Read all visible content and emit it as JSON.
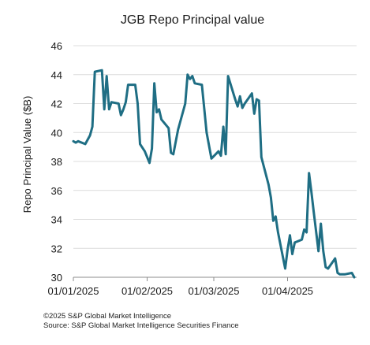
{
  "chart_data": {
    "type": "line",
    "title": "JGB Repo Principal value",
    "xlabel": "",
    "ylabel": "Repo Principal Value ($B)",
    "ylim": [
      30,
      46
    ],
    "yticks": [
      "30",
      "32",
      "34",
      "36",
      "38",
      "40",
      "42",
      "44",
      "46"
    ],
    "xlim": [
      "2025-01-01",
      "2025-04-30"
    ],
    "xticks": [
      {
        "date": "2025-01-01",
        "label": "01/01/2025"
      },
      {
        "date": "2025-02-01",
        "label": "01/02/2025"
      },
      {
        "date": "2025-03-01",
        "label": "01/03/2025"
      },
      {
        "date": "2025-04-01",
        "label": "01/04/2025"
      }
    ],
    "grid": "horizontal",
    "line_color": "#1f6e84",
    "series": [
      {
        "points": [
          [
            "2025-01-01",
            39.4
          ],
          [
            "2025-01-02",
            39.3
          ],
          [
            "2025-01-03",
            39.4
          ],
          [
            "2025-01-06",
            39.2
          ],
          [
            "2025-01-08",
            39.8
          ],
          [
            "2025-01-09",
            40.4
          ],
          [
            "2025-01-10",
            44.2
          ],
          [
            "2025-01-13",
            44.3
          ],
          [
            "2025-01-14",
            41.6
          ],
          [
            "2025-01-15",
            43.9
          ],
          [
            "2025-01-16",
            41.6
          ],
          [
            "2025-01-17",
            42.1
          ],
          [
            "2025-01-20",
            42.0
          ],
          [
            "2025-01-21",
            41.2
          ],
          [
            "2025-01-22",
            41.6
          ],
          [
            "2025-01-23",
            42.1
          ],
          [
            "2025-01-24",
            43.3
          ],
          [
            "2025-01-27",
            43.3
          ],
          [
            "2025-01-28",
            42.0
          ],
          [
            "2025-01-29",
            39.2
          ],
          [
            "2025-01-31",
            38.7
          ],
          [
            "2025-02-02",
            37.9
          ],
          [
            "2025-02-03",
            38.9
          ],
          [
            "2025-02-04",
            43.4
          ],
          [
            "2025-02-05",
            41.4
          ],
          [
            "2025-02-06",
            41.6
          ],
          [
            "2025-02-07",
            40.9
          ],
          [
            "2025-02-10",
            40.3
          ],
          [
            "2025-02-11",
            38.6
          ],
          [
            "2025-02-12",
            38.5
          ],
          [
            "2025-02-14",
            40.2
          ],
          [
            "2025-02-17",
            42.0
          ],
          [
            "2025-02-18",
            44.0
          ],
          [
            "2025-02-19",
            43.7
          ],
          [
            "2025-02-20",
            43.9
          ],
          [
            "2025-02-21",
            43.4
          ],
          [
            "2025-02-24",
            43.3
          ],
          [
            "2025-02-26",
            40.0
          ],
          [
            "2025-02-28",
            38.2
          ],
          [
            "2025-03-03",
            38.7
          ],
          [
            "2025-03-04",
            38.4
          ],
          [
            "2025-03-05",
            40.4
          ],
          [
            "2025-03-06",
            38.5
          ],
          [
            "2025-03-07",
            43.9
          ],
          [
            "2025-03-10",
            42.3
          ],
          [
            "2025-03-11",
            41.8
          ],
          [
            "2025-03-12",
            42.5
          ],
          [
            "2025-03-13",
            41.7
          ],
          [
            "2025-03-14",
            42.0
          ],
          [
            "2025-03-17",
            42.7
          ],
          [
            "2025-03-18",
            41.3
          ],
          [
            "2025-03-19",
            42.3
          ],
          [
            "2025-03-20",
            42.2
          ],
          [
            "2025-03-21",
            38.3
          ],
          [
            "2025-03-24",
            36.4
          ],
          [
            "2025-03-25",
            35.5
          ],
          [
            "2025-03-26",
            33.9
          ],
          [
            "2025-03-27",
            34.2
          ],
          [
            "2025-03-28",
            33.1
          ],
          [
            "2025-03-31",
            30.6
          ],
          [
            "2025-04-01",
            31.9
          ],
          [
            "2025-04-02",
            32.9
          ],
          [
            "2025-04-03",
            31.6
          ],
          [
            "2025-04-04",
            32.4
          ],
          [
            "2025-04-07",
            32.6
          ],
          [
            "2025-04-08",
            33.3
          ],
          [
            "2025-04-09",
            33.1
          ],
          [
            "2025-04-10",
            37.2
          ],
          [
            "2025-04-11",
            35.9
          ],
          [
            "2025-04-12",
            34.5
          ],
          [
            "2025-04-14",
            31.8
          ],
          [
            "2025-04-15",
            33.7
          ],
          [
            "2025-04-16",
            31.8
          ],
          [
            "2025-04-17",
            30.7
          ],
          [
            "2025-04-18",
            30.6
          ],
          [
            "2025-04-21",
            31.3
          ],
          [
            "2025-04-22",
            30.3
          ],
          [
            "2025-04-23",
            30.2
          ],
          [
            "2025-04-25",
            30.2
          ],
          [
            "2025-04-28",
            30.3
          ],
          [
            "2025-04-29",
            30.0
          ]
        ]
      }
    ]
  },
  "footer": {
    "copyright": "©2025 S&P Global Market Intelligence",
    "source": "Source: S&P Global Market Intelligence Securities Finance"
  }
}
